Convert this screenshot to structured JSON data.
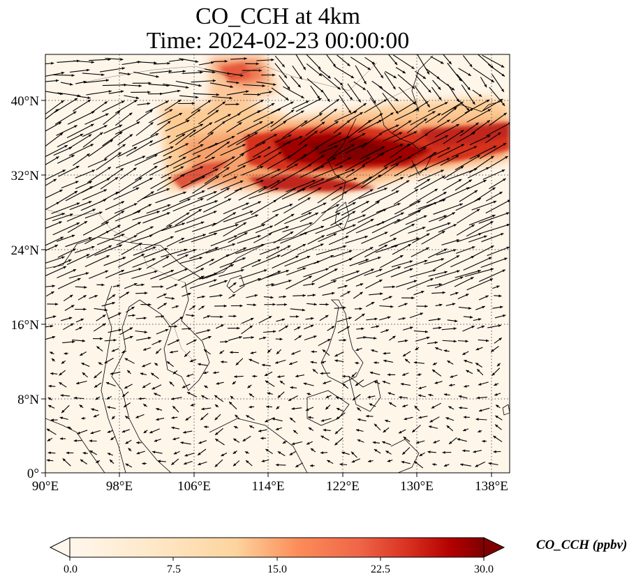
{
  "title_line1": "CO_CCH at 4km",
  "title_line2": "Time: 2024-02-23 00:00:00",
  "lat_ticks": [
    "40°N",
    "32°N",
    "24°N",
    "16°N",
    "8°N",
    "0°"
  ],
  "lon_ticks": [
    "90°E",
    "98°E",
    "106°E",
    "114°E",
    "122°E",
    "130°E",
    "138°E"
  ],
  "colorbar": {
    "label": "CO_CCH (ppbv)",
    "ticks": [
      "0.0",
      "7.5",
      "15.0",
      "22.5",
      "30.0"
    ],
    "range": [
      0.0,
      30.0
    ],
    "colormap": "OrRd",
    "extend": "both"
  },
  "map_extent": {
    "lon_min": 90,
    "lon_max": 140,
    "lat_min": 0,
    "lat_max": 45
  },
  "grid": "dotted",
  "colors": {
    "low": "#fff7ec",
    "mid": "#fdbb84",
    "high": "#7f0000",
    "arrows": "#000000"
  }
}
